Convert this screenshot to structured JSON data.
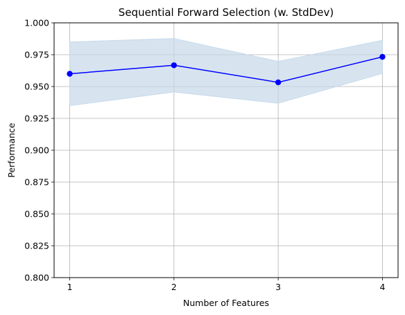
{
  "chart_data": {
    "type": "line",
    "title": "Sequential Forward Selection (w. StdDev)",
    "xlabel": "Number of Features",
    "ylabel": "Performance",
    "x": [
      1,
      2,
      3,
      4
    ],
    "x_ticks": [
      "1",
      "2",
      "3",
      "4"
    ],
    "y_ticks": [
      "0.800",
      "0.825",
      "0.850",
      "0.875",
      "0.900",
      "0.925",
      "0.950",
      "0.975",
      "1.000"
    ],
    "ylim": [
      0.8,
      1.0
    ],
    "grid": true,
    "series": [
      {
        "values": [
          0.96,
          0.9667,
          0.9533,
          0.9733
        ],
        "upper": [
          0.985,
          0.9877,
          0.9697,
          0.9863
        ],
        "lower": [
          0.935,
          0.9457,
          0.9369,
          0.9603
        ],
        "color": "#0000ff",
        "band_color": "#c6d9ea"
      }
    ]
  }
}
